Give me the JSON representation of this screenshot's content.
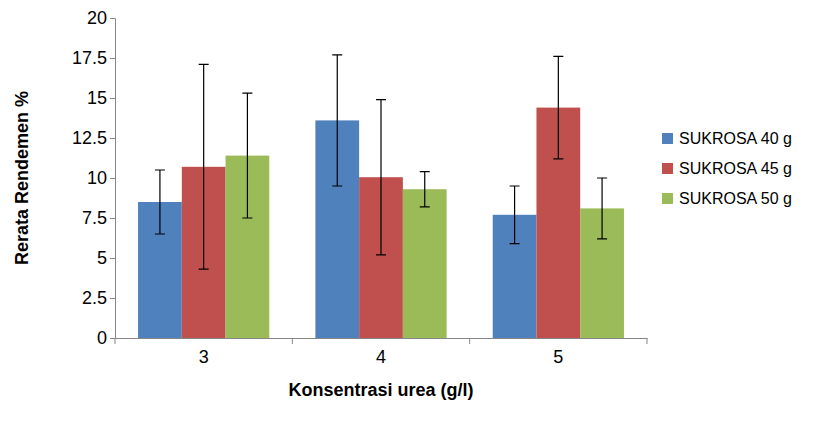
{
  "chart_data": {
    "type": "bar",
    "x_label": "Konsentrasi urea (g/l)",
    "y_label": "Rerata Rendemen %",
    "categories": [
      "3",
      "4",
      "5"
    ],
    "series": [
      {
        "name": "SUKROSA 40 g",
        "color": "#4f81bd",
        "values": [
          8.5,
          13.6,
          7.7
        ],
        "errors": [
          2.0,
          4.1,
          1.8
        ]
      },
      {
        "name": "SUKROSA 45 g",
        "color": "#c0504d",
        "values": [
          10.7,
          10.05,
          14.4
        ],
        "errors": [
          6.4,
          4.85,
          3.2
        ]
      },
      {
        "name": "SUKROSA 50 g",
        "color": "#9bbb59",
        "values": [
          11.4,
          9.3,
          8.1
        ],
        "errors": [
          3.9,
          1.1,
          1.9
        ]
      }
    ],
    "ylim": [
      0,
      20
    ],
    "yticks": [
      0,
      2.5,
      5,
      7.5,
      10,
      12.5,
      15,
      17.5,
      20
    ],
    "grid": false,
    "legend": "right"
  }
}
